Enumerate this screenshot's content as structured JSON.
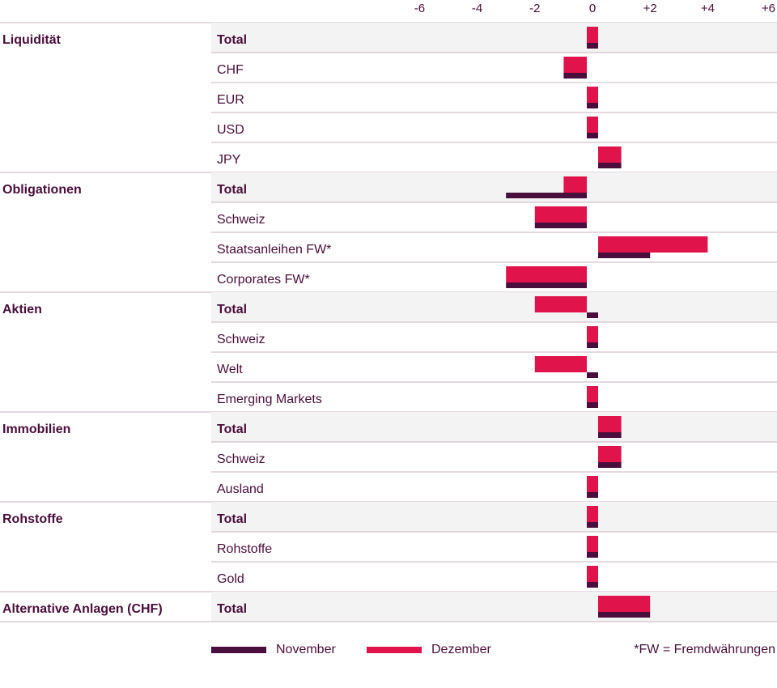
{
  "colors": {
    "november": "#4a0e3c",
    "dezember": "#e0134a",
    "shade": "#f3f3f3",
    "divider": "#c9b3c3"
  },
  "chart_data": {
    "type": "bar",
    "orientation": "horizontal",
    "xlim": [
      -6,
      6
    ],
    "x_ticks": [
      -6,
      -4,
      -2,
      0,
      2,
      4,
      6
    ],
    "x_tick_labels": [
      "-6",
      "-4",
      "-2",
      "0",
      "+2",
      "+4",
      "+6"
    ],
    "series": [
      {
        "name": "November"
      },
      {
        "name": "Dezember"
      }
    ],
    "groups": [
      {
        "name": "Liquidität",
        "rows": [
          {
            "label": "Total",
            "total": true,
            "november": 0,
            "dezember": 0
          },
          {
            "label": "CHF",
            "total": false,
            "november": -1,
            "dezember": -1
          },
          {
            "label": "EUR",
            "total": false,
            "november": 0,
            "dezember": 0
          },
          {
            "label": "USD",
            "total": false,
            "november": 0,
            "dezember": 0
          },
          {
            "label": "JPY",
            "total": false,
            "november": 1,
            "dezember": 1
          }
        ]
      },
      {
        "name": "Obligationen",
        "rows": [
          {
            "label": "Total",
            "total": true,
            "november": -3,
            "dezember": -1
          },
          {
            "label": "Schweiz",
            "total": false,
            "november": -2,
            "dezember": -2
          },
          {
            "label": "Staatsanleihen FW*",
            "total": false,
            "november": 2,
            "dezember": 4
          },
          {
            "label": "Corporates FW*",
            "total": false,
            "november": -3,
            "dezember": -3
          }
        ]
      },
      {
        "name": "Aktien",
        "rows": [
          {
            "label": "Total",
            "total": true,
            "november": 0,
            "dezember": -2
          },
          {
            "label": "Schweiz",
            "total": false,
            "november": 0,
            "dezember": 0
          },
          {
            "label": "Welt",
            "total": false,
            "november": 0,
            "dezember": -2
          },
          {
            "label": "Emerging Markets",
            "total": false,
            "november": 0,
            "dezember": 0
          }
        ]
      },
      {
        "name": "Immobilien",
        "rows": [
          {
            "label": "Total",
            "total": true,
            "november": 1,
            "dezember": 1
          },
          {
            "label": "Schweiz",
            "total": false,
            "november": 1,
            "dezember": 1
          },
          {
            "label": "Ausland",
            "total": false,
            "november": 0,
            "dezember": 0
          }
        ]
      },
      {
        "name": "Rohstoffe",
        "rows": [
          {
            "label": "Total",
            "total": true,
            "november": 0,
            "dezember": 0
          },
          {
            "label": "Rohstoffe",
            "total": false,
            "november": 0,
            "dezember": 0
          },
          {
            "label": "Gold",
            "total": false,
            "november": 0,
            "dezember": 0
          }
        ]
      },
      {
        "name": "Alternative Anlagen (CHF)",
        "rows": [
          {
            "label": "Total",
            "total": true,
            "november": 2,
            "dezember": 2
          }
        ]
      }
    ]
  },
  "legend": {
    "november_label": "November",
    "dezember_label": "Dezember"
  },
  "footnote": "*FW = Fremdwährungen"
}
